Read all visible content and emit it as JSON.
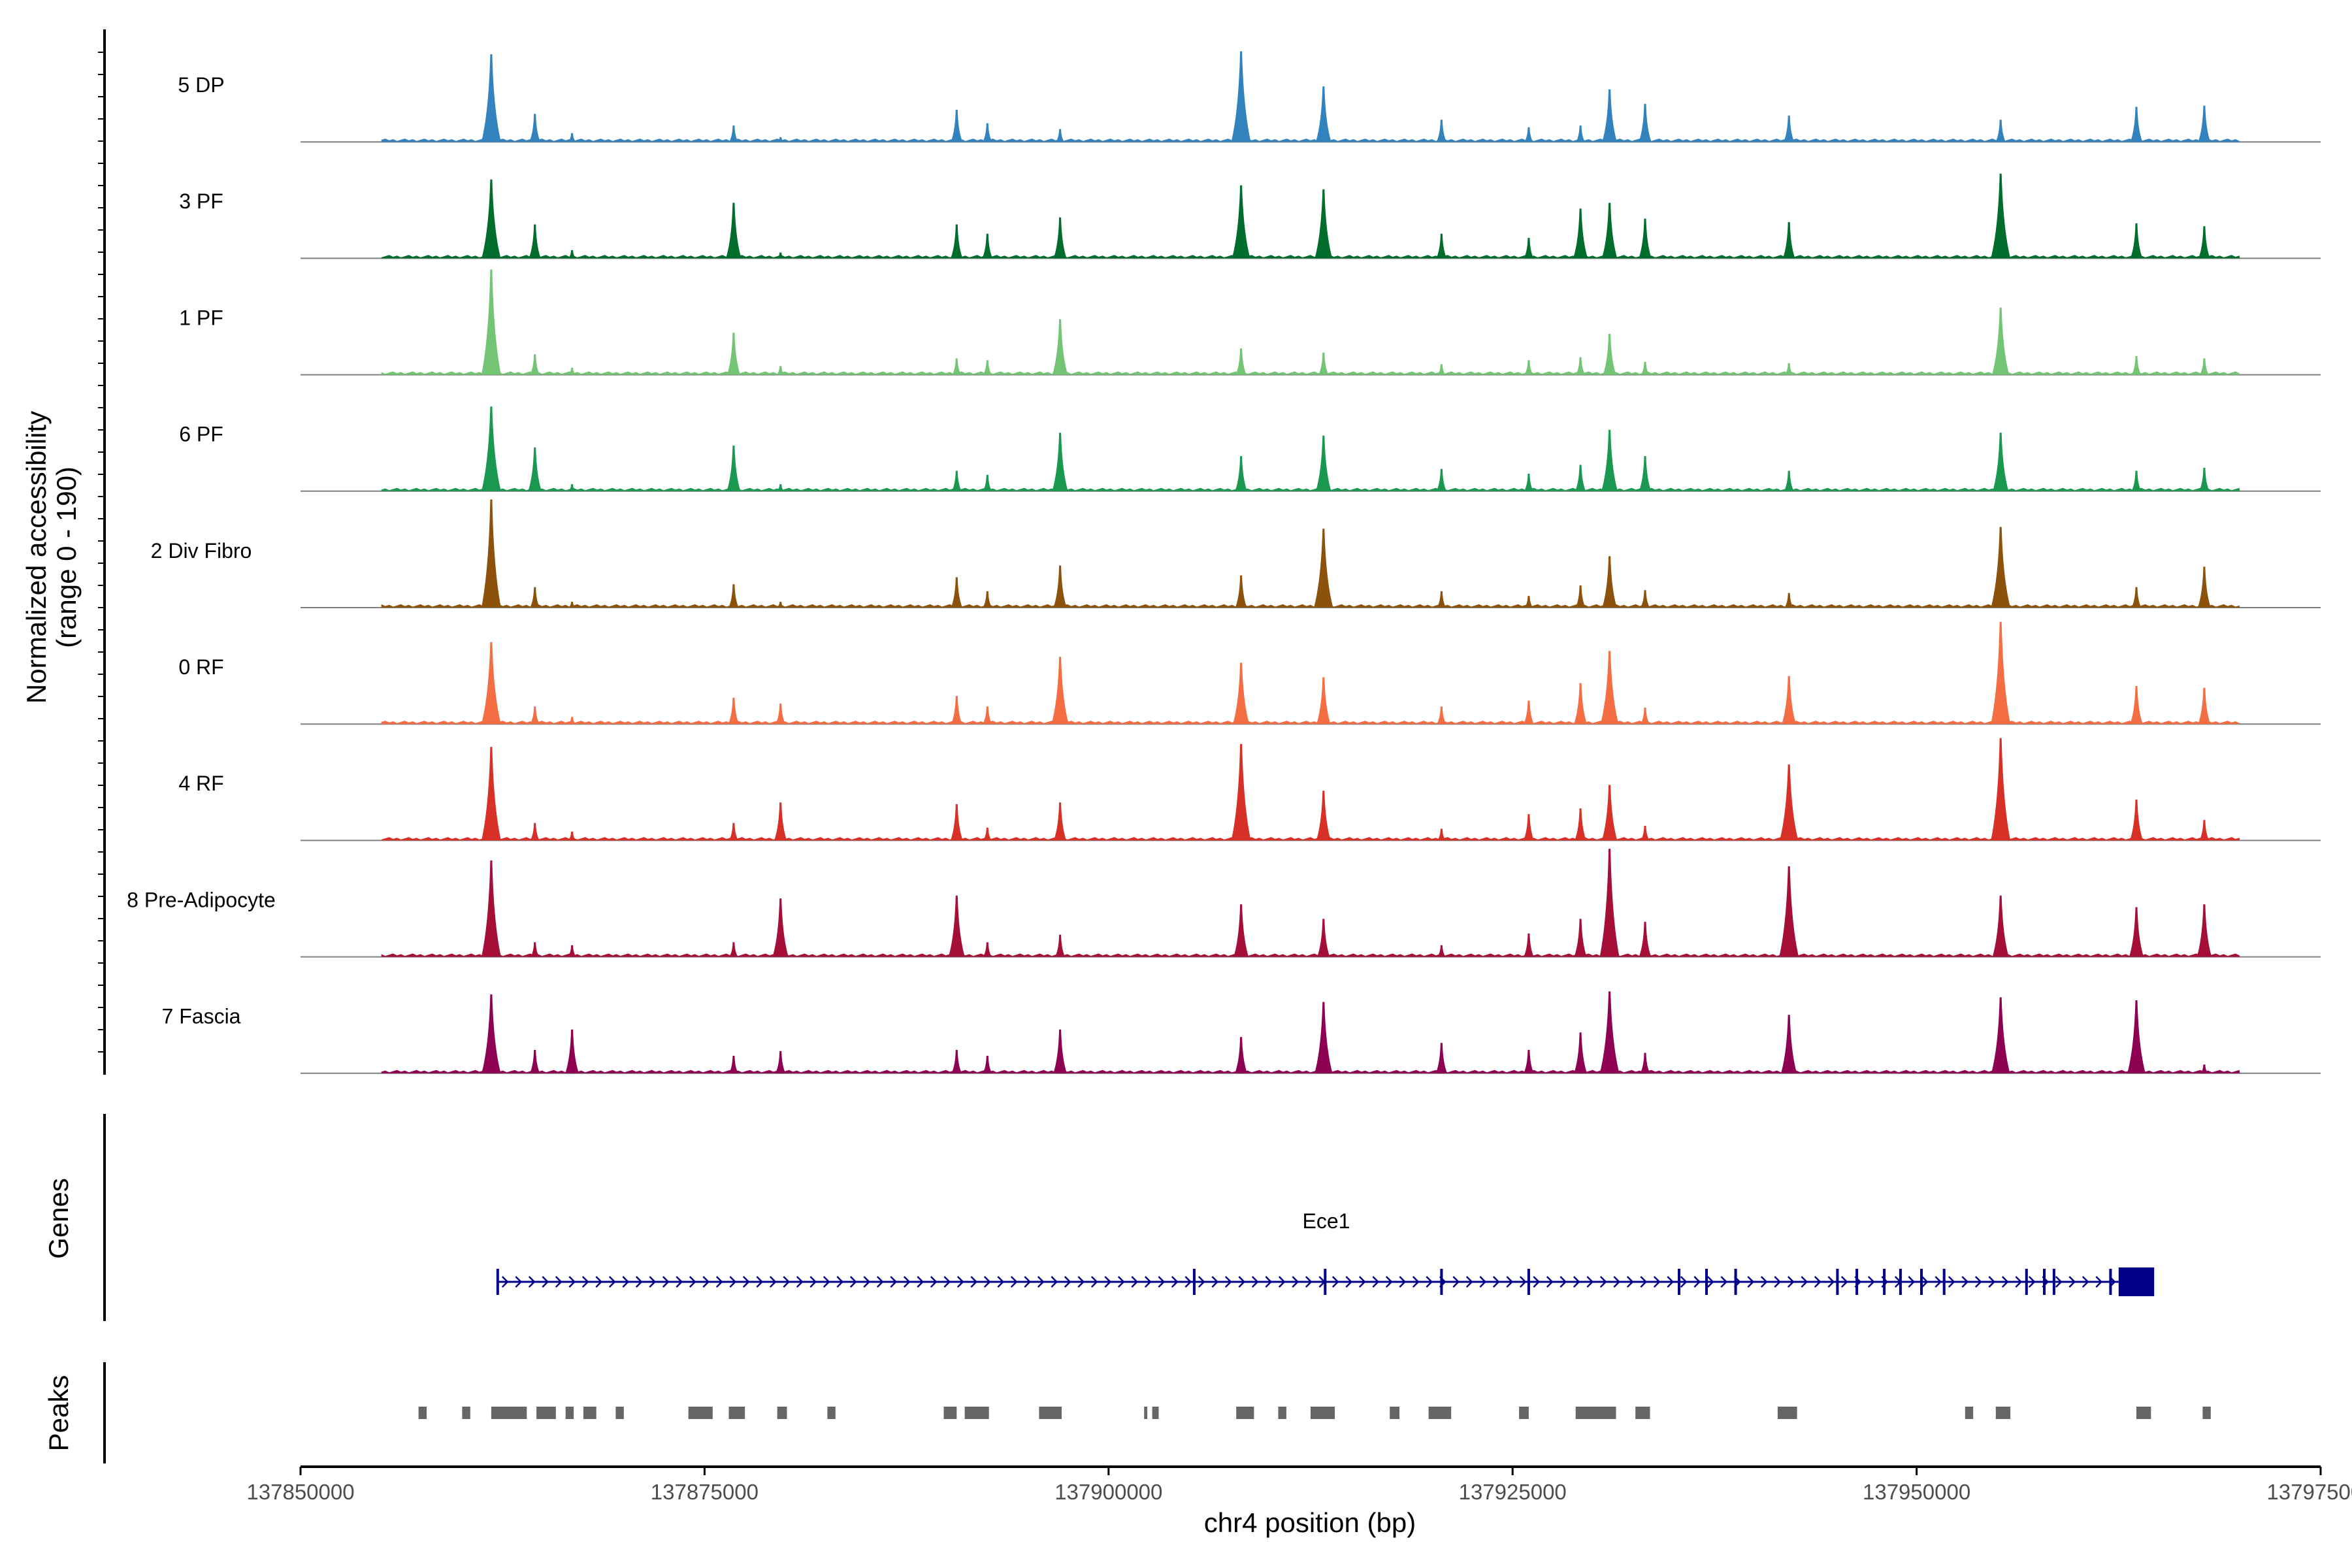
{
  "chart_data": {
    "type": "area",
    "title": "",
    "ylabel_line1": "Normalized accessibility",
    "ylabel_line2": "(range 0 - 190)",
    "xlabel": "chr4 position (bp)",
    "xlim": [
      137850000,
      137975000
    ],
    "ylim": [
      0,
      190
    ],
    "x_ticks": [
      137850000,
      137875000,
      137900000,
      137925000,
      137950000,
      137975000
    ],
    "x_tick_labels": [
      "137850000",
      "137875000",
      "137900000",
      "137925000",
      "137950000",
      "137975000"
    ],
    "region_end": 137970000,
    "peak_positions": [
      137861800,
      137864500,
      137866800,
      137876800,
      137879700,
      137890600,
      137892500,
      137897000,
      137908200,
      137913300,
      137920600,
      137926000,
      137929200,
      137931000,
      137933200,
      137942100,
      137955200,
      137963600,
      137967800
    ],
    "series": [
      {
        "name": "5 DP",
        "color": "#3182bd",
        "peaks": [
          150,
          48,
          15,
          28,
          8,
          55,
          32,
          22,
          155,
          95,
          38,
          25,
          28,
          90,
          65,
          45,
          38,
          60,
          62
        ]
      },
      {
        "name": "3 PF",
        "color": "#006d2c",
        "peaks": [
          135,
          58,
          14,
          95,
          10,
          58,
          42,
          70,
          125,
          118,
          42,
          35,
          85,
          95,
          68,
          62,
          145,
          60,
          55
        ]
      },
      {
        "name": "1 PF",
        "color": "#74c476",
        "peaks": [
          180,
          35,
          12,
          72,
          15,
          28,
          25,
          95,
          45,
          38,
          18,
          25,
          30,
          70,
          22,
          20,
          115,
          32,
          28
        ]
      },
      {
        "name": "6 PF",
        "color": "#1a9850",
        "peaks": [
          145,
          75,
          12,
          78,
          12,
          35,
          28,
          100,
          60,
          95,
          38,
          30,
          45,
          105,
          60,
          35,
          100,
          35,
          40
        ]
      },
      {
        "name": "2 Div Fibro",
        "color": "#8c510a",
        "peaks": [
          185,
          35,
          10,
          40,
          10,
          52,
          28,
          72,
          55,
          135,
          28,
          20,
          38,
          88,
          30,
          25,
          138,
          35,
          70
        ]
      },
      {
        "name": "0 RF",
        "color": "#f46d43",
        "peaks": [
          140,
          30,
          12,
          45,
          35,
          48,
          30,
          115,
          105,
          80,
          30,
          40,
          70,
          125,
          28,
          82,
          175,
          65,
          62
        ]
      },
      {
        "name": "4 RF",
        "color": "#d73027",
        "peaks": [
          160,
          30,
          15,
          30,
          65,
          62,
          22,
          65,
          165,
          85,
          20,
          45,
          55,
          95,
          25,
          130,
          175,
          70,
          35
        ]
      },
      {
        "name": "8 Pre-Adipocyte",
        "color": "#a50f37",
        "peaks": [
          165,
          25,
          20,
          25,
          100,
          105,
          25,
          38,
          90,
          65,
          20,
          40,
          65,
          185,
          60,
          155,
          105,
          85,
          90
        ]
      },
      {
        "name": "7 Fascia",
        "color": "#8e0152",
        "peaks": [
          135,
          40,
          75,
          30,
          38,
          40,
          30,
          75,
          62,
          122,
          52,
          40,
          70,
          140,
          35,
          100,
          130,
          125,
          15
        ]
      }
    ],
    "genes": {
      "track_label": "Genes",
      "name": "Ece1",
      "color": "#00008b",
      "start": 137862200,
      "end": 137964700,
      "exon_positions": [
        137862200,
        137905300,
        137913400,
        137920600,
        137926000,
        137935300,
        137937000,
        137938800,
        137945100,
        137946300,
        137948000,
        137949000,
        137950300,
        137951700,
        137956800,
        137957900,
        137958500,
        137962000
      ],
      "utr_start": 137962500,
      "utr_end": 137964700
    },
    "peaks_track": {
      "track_label": "Peaks",
      "color": "#666666",
      "intervals": [
        [
          137857300,
          137857800
        ],
        [
          137860000,
          137860500
        ],
        [
          137861800,
          137864000
        ],
        [
          137864600,
          137865800
        ],
        [
          137866400,
          137866900
        ],
        [
          137867500,
          137868300
        ],
        [
          137869500,
          137870000
        ],
        [
          137874000,
          137875500
        ],
        [
          137876500,
          137877500
        ],
        [
          137879500,
          137880100
        ],
        [
          137882600,
          137883100
        ],
        [
          137889800,
          137890600
        ],
        [
          137891100,
          137892600
        ],
        [
          137895700,
          137897100
        ],
        [
          137902200,
          137902400
        ],
        [
          137902700,
          137903100
        ],
        [
          137907900,
          137909000
        ],
        [
          137910500,
          137911000
        ],
        [
          137912500,
          137914000
        ],
        [
          137917400,
          137918000
        ],
        [
          137919800,
          137921200
        ],
        [
          137925400,
          137926000
        ],
        [
          137928900,
          137931400
        ],
        [
          137932600,
          137933500
        ],
        [
          137941400,
          137942600
        ],
        [
          137953000,
          137953500
        ],
        [
          137954900,
          137955800
        ],
        [
          137963600,
          137964500
        ],
        [
          137967700,
          137968200
        ]
      ]
    }
  }
}
